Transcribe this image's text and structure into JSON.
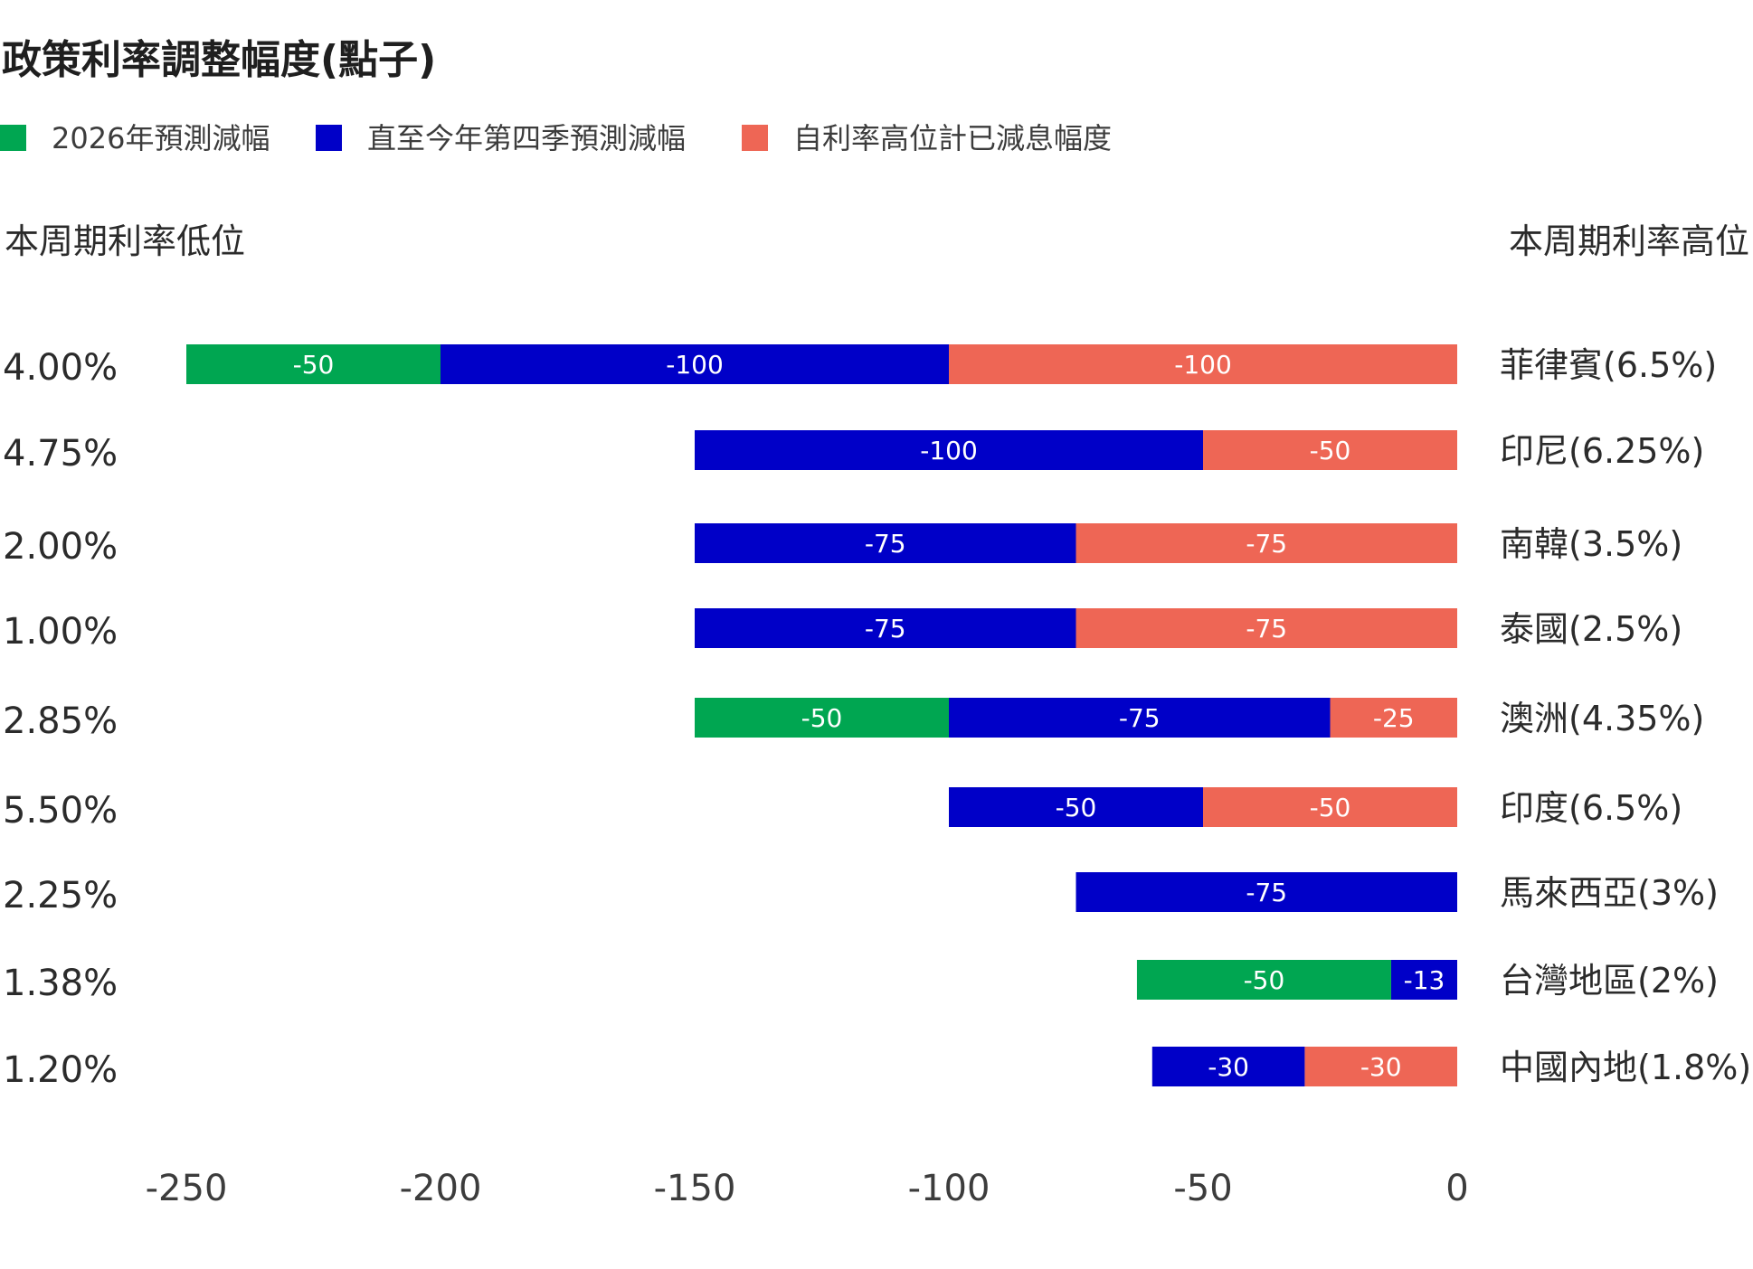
{
  "chart_data": {
    "type": "bar",
    "orientation": "horizontal",
    "stacked": true,
    "title": "政策利率調整幅度(點子)",
    "left_header": "本周期利率低位",
    "right_header": "本周期利率高位",
    "xlim": [
      -250,
      0
    ],
    "x_ticks": [
      -250,
      -200,
      -150,
      -100,
      -50,
      0
    ],
    "x_tick_labels": [
      "-250",
      "-200",
      "-150",
      "-100",
      "-50",
      "0"
    ],
    "grid": false,
    "legend_position": "top-left",
    "series": [
      {
        "key": "forecast_2026",
        "name": "2026年預測減幅",
        "color": "#00a651"
      },
      {
        "key": "forecast_q4",
        "name": "直至今年第四季預測減幅",
        "color": "#0000c8"
      },
      {
        "key": "cut_so_far",
        "name": "自利率高位計已減息幅度",
        "color": "#ee6655"
      }
    ],
    "categories": [
      {
        "country": "菲律賓(6.5%)",
        "low": "4.00%",
        "values": {
          "forecast_2026": -50,
          "forecast_q4": -100,
          "cut_so_far": -100
        },
        "labels": {
          "forecast_2026": "-50",
          "forecast_q4": "-100",
          "cut_so_far": "-100"
        }
      },
      {
        "country": "印尼(6.25%)",
        "low": "4.75%",
        "values": {
          "forecast_2026": 0,
          "forecast_q4": -100,
          "cut_so_far": -50
        },
        "labels": {
          "forecast_q4": "-100",
          "cut_so_far": "-50"
        }
      },
      {
        "country": "南韓(3.5%)",
        "low": "2.00%",
        "values": {
          "forecast_2026": 0,
          "forecast_q4": -75,
          "cut_so_far": -75
        },
        "labels": {
          "forecast_q4": "-75",
          "cut_so_far": "-75"
        }
      },
      {
        "country": "泰國(2.5%)",
        "low": "1.00%",
        "values": {
          "forecast_2026": 0,
          "forecast_q4": -75,
          "cut_so_far": -75
        },
        "labels": {
          "forecast_q4": "-75",
          "cut_so_far": "-75"
        }
      },
      {
        "country": "澳洲(4.35%)",
        "low": "2.85%",
        "values": {
          "forecast_2026": -50,
          "forecast_q4": -75,
          "cut_so_far": -25
        },
        "labels": {
          "forecast_2026": "-50",
          "forecast_q4": "-75",
          "cut_so_far": "-25"
        }
      },
      {
        "country": "印度(6.5%)",
        "low": "5.50%",
        "values": {
          "forecast_2026": 0,
          "forecast_q4": -50,
          "cut_so_far": -50
        },
        "labels": {
          "forecast_q4": "-50",
          "cut_so_far": "-50"
        }
      },
      {
        "country": "馬來西亞(3%)",
        "low": "2.25%",
        "values": {
          "forecast_2026": 0,
          "forecast_q4": -75,
          "cut_so_far": 0
        },
        "labels": {
          "forecast_q4": "-75"
        }
      },
      {
        "country": "台灣地區(2%)",
        "low": "1.38%",
        "values": {
          "forecast_2026": -50,
          "forecast_q4": -13,
          "cut_so_far": 0
        },
        "labels": {
          "forecast_2026": "-50",
          "forecast_q4": "-13"
        }
      },
      {
        "country": "中國內地(1.8%)",
        "low": "1.20%",
        "values": {
          "forecast_2026": 0,
          "forecast_q4": -30,
          "cut_so_far": -30
        },
        "labels": {
          "forecast_q4": "-30",
          "cut_so_far": "-30"
        }
      }
    ]
  }
}
